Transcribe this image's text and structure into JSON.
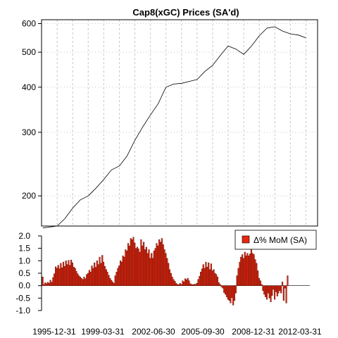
{
  "chart_data": [
    {
      "type": "line",
      "title": "Cap8(xGC) Prices (SA'd)",
      "y_scale": "log",
      "ylim": [
        165,
        615
      ],
      "y_ticks": [
        200,
        300,
        400,
        500,
        600
      ],
      "grid": true,
      "x_start": "1995-12-31",
      "x_end": "2013-09-30",
      "series": [
        {
          "points": [
            [
              "1996-01-31",
              163
            ],
            [
              "1996-12-31",
              165
            ],
            [
              "1997-06-30",
              173
            ],
            [
              "1997-12-31",
              185
            ],
            [
              "1998-06-30",
              195
            ],
            [
              "1998-12-31",
              200
            ],
            [
              "1999-06-30",
              210
            ],
            [
              "1999-12-31",
              222
            ],
            [
              "2000-06-30",
              236
            ],
            [
              "2000-12-31",
              242
            ],
            [
              "2001-06-30",
              258
            ],
            [
              "2001-12-31",
              285
            ],
            [
              "2002-06-30",
              310
            ],
            [
              "2002-12-31",
              335
            ],
            [
              "2003-06-30",
              360
            ],
            [
              "2003-12-31",
              400
            ],
            [
              "2004-06-30",
              408
            ],
            [
              "2004-12-31",
              410
            ],
            [
              "2005-06-30",
              415
            ],
            [
              "2005-12-31",
              420
            ],
            [
              "2006-06-30",
              442
            ],
            [
              "2006-12-31",
              460
            ],
            [
              "2007-06-30",
              490
            ],
            [
              "2007-12-31",
              520
            ],
            [
              "2008-06-30",
              510
            ],
            [
              "2008-12-31",
              493
            ],
            [
              "2009-06-30",
              520
            ],
            [
              "2009-12-31",
              555
            ],
            [
              "2010-06-30",
              583
            ],
            [
              "2010-12-31",
              588
            ],
            [
              "2011-06-30",
              572
            ],
            [
              "2011-12-31",
              562
            ],
            [
              "2012-06-30",
              558
            ],
            [
              "2012-12-31",
              548
            ]
          ]
        }
      ]
    },
    {
      "type": "bar",
      "ylim": [
        -1.0,
        2.0
      ],
      "y_ticks": [
        -1.0,
        -0.5,
        0.0,
        0.5,
        1.0,
        1.5,
        2.0
      ],
      "y_tick_labels": [
        "-1.0",
        "-0.5",
        "0.0",
        "0.5",
        "1.0",
        "1.5",
        "2.0"
      ],
      "x_tick_labels": [
        "1995-12-31",
        "1999-03-31",
        "2002-06-30",
        "2005-09-30",
        "2008-12-31",
        "2012-03-31"
      ],
      "legend": {
        "label": "Δ% MoM (SA)",
        "position": "top-right"
      },
      "series": [
        {
          "name": "Δ% MoM (SA)",
          "color": "#e8250c",
          "start": "1996-01-31",
          "frequency": "monthly",
          "values": [
            0.35,
            0.05,
            0.12,
            0.08,
            0.14,
            0.1,
            0.22,
            0.14,
            0.33,
            0.48,
            0.76,
            0.7,
            0.82,
            0.68,
            0.9,
            0.72,
            0.95,
            0.78,
            1.0,
            0.85,
            1.02,
            0.82,
            1.03,
            0.92,
            0.75,
            0.7,
            0.58,
            0.48,
            0.4,
            0.35,
            0.3,
            0.25,
            0.35,
            0.28,
            0.45,
            0.5,
            0.62,
            0.55,
            0.8,
            0.7,
            0.92,
            0.74,
            1.0,
            0.85,
            1.15,
            0.9,
            1.22,
            0.95,
            0.78,
            0.65,
            0.55,
            0.42,
            0.3,
            0.22,
            0.15,
            0.1,
            0.4,
            0.55,
            0.7,
            0.8,
            1.0,
            0.95,
            1.2,
            1.15,
            1.45,
            1.4,
            1.7,
            1.6,
            1.9,
            1.85,
            1.95,
            1.72,
            1.5,
            1.55,
            1.48,
            1.35,
            1.85,
            1.6,
            1.75,
            1.45,
            1.55,
            1.3,
            1.45,
            1.1,
            1.3,
            1.1,
            1.4,
            1.5,
            1.7,
            1.6,
            1.85,
            1.75,
            1.9,
            1.65,
            1.45,
            1.3,
            1.1,
            0.9,
            0.65,
            0.5,
            0.35,
            0.25,
            0.18,
            0.1,
            0.05,
            0.04,
            0.1,
            0.05,
            0.2,
            0.15,
            0.28,
            0.24,
            0.3,
            0.2,
            0.08,
            0.05,
            0.04,
            0.06,
            0.05,
            0.1,
            0.25,
            0.38,
            0.55,
            0.68,
            0.85,
            0.7,
            0.95,
            0.75,
            0.92,
            0.65,
            0.88,
            0.6,
            0.65,
            0.5,
            0.45,
            0.35,
            0.12,
            0.05,
            -0.05,
            -0.1,
            -0.28,
            -0.35,
            -0.45,
            -0.55,
            -0.6,
            -0.7,
            -0.48,
            -0.78,
            -0.6,
            -0.3,
            0.4,
            0.7,
            0.95,
            1.15,
            1.25,
            1.1,
            1.35,
            1.2,
            1.3,
            1.2,
            1.28,
            1.52,
            1.3,
            1.25,
            1.05,
            0.9,
            0.6,
            0.3,
            0.2,
            0.05,
            -0.2,
            -0.35,
            -0.45,
            -0.55,
            -0.3,
            -0.5,
            -0.65,
            -0.4,
            -0.15,
            -0.55,
            -0.25,
            -0.42,
            -0.3,
            -0.2,
            -0.3,
            0.15,
            -0.6,
            -0.1,
            -0.7,
            0.4
          ]
        }
      ]
    }
  ]
}
